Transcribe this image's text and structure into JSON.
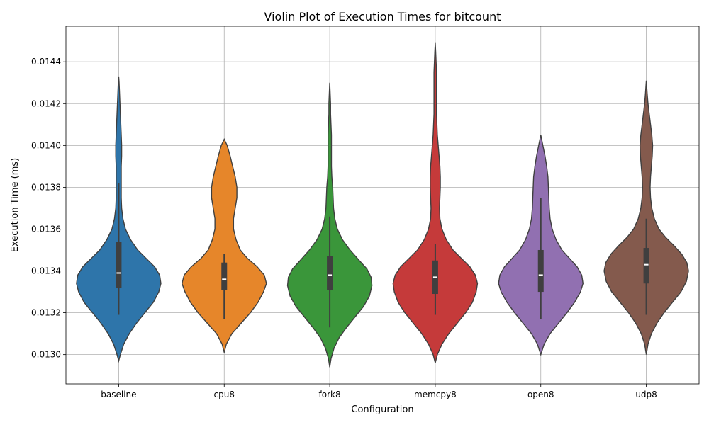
{
  "chart_data": {
    "type": "violin",
    "title": "Violin Plot of Execution Times for bitcount",
    "xlabel": "Configuration",
    "ylabel": "Execution Time (ms)",
    "ylim": [
      0.01286,
      0.01457
    ],
    "yticks": [
      "0.0130",
      "0.0132",
      "0.0134",
      "0.0136",
      "0.0138",
      "0.0140",
      "0.0142",
      "0.0144"
    ],
    "grid": true,
    "categories": [
      "baseline",
      "cpu8",
      "fork8",
      "memcpy8",
      "open8",
      "udp8"
    ],
    "colors": [
      "#2e75aa",
      "#e6862a",
      "#3a963a",
      "#c53a3a",
      "#9170b1",
      "#845a4d"
    ],
    "series": [
      {
        "name": "baseline",
        "min": 0.01297,
        "max": 0.01433,
        "q1": 0.01332,
        "median": 0.01339,
        "q3": 0.01354,
        "whisker_low": 0.01319,
        "whisker_high": 0.01382,
        "density": [
          [
            0.01297,
            0.0
          ],
          [
            0.013,
            0.04
          ],
          [
            0.01305,
            0.12
          ],
          [
            0.0131,
            0.25
          ],
          [
            0.01315,
            0.42
          ],
          [
            0.0132,
            0.62
          ],
          [
            0.01325,
            0.82
          ],
          [
            0.0133,
            0.95
          ],
          [
            0.01334,
            1.0
          ],
          [
            0.01338,
            0.97
          ],
          [
            0.01342,
            0.85
          ],
          [
            0.01346,
            0.65
          ],
          [
            0.0135,
            0.45
          ],
          [
            0.01355,
            0.28
          ],
          [
            0.0136,
            0.16
          ],
          [
            0.01365,
            0.1
          ],
          [
            0.0137,
            0.07
          ],
          [
            0.01375,
            0.06
          ],
          [
            0.0138,
            0.06
          ],
          [
            0.01385,
            0.06
          ],
          [
            0.0139,
            0.06
          ],
          [
            0.01395,
            0.07
          ],
          [
            0.014,
            0.07
          ],
          [
            0.01405,
            0.06
          ],
          [
            0.0141,
            0.05
          ],
          [
            0.01415,
            0.04
          ],
          [
            0.0142,
            0.03
          ],
          [
            0.01425,
            0.02
          ],
          [
            0.0143,
            0.01
          ],
          [
            0.01433,
            0.0
          ]
        ]
      },
      {
        "name": "cpu8",
        "min": 0.01301,
        "max": 0.01403,
        "q1": 0.01331,
        "median": 0.01336,
        "q3": 0.01344,
        "whisker_low": 0.01317,
        "whisker_high": 0.01348,
        "density": [
          [
            0.01301,
            0.0
          ],
          [
            0.01305,
            0.05
          ],
          [
            0.0131,
            0.18
          ],
          [
            0.01315,
            0.4
          ],
          [
            0.0132,
            0.62
          ],
          [
            0.01325,
            0.8
          ],
          [
            0.0133,
            0.93
          ],
          [
            0.01334,
            1.0
          ],
          [
            0.01338,
            0.95
          ],
          [
            0.01342,
            0.78
          ],
          [
            0.01346,
            0.55
          ],
          [
            0.0135,
            0.38
          ],
          [
            0.01355,
            0.28
          ],
          [
            0.0136,
            0.22
          ],
          [
            0.01365,
            0.22
          ],
          [
            0.0137,
            0.26
          ],
          [
            0.01375,
            0.3
          ],
          [
            0.0138,
            0.3
          ],
          [
            0.01385,
            0.26
          ],
          [
            0.0139,
            0.2
          ],
          [
            0.01395,
            0.14
          ],
          [
            0.014,
            0.07
          ],
          [
            0.01403,
            0.0
          ]
        ]
      },
      {
        "name": "fork8",
        "min": 0.01294,
        "max": 0.0143,
        "q1": 0.01331,
        "median": 0.01338,
        "q3": 0.01347,
        "whisker_low": 0.01313,
        "whisker_high": 0.01366,
        "density": [
          [
            0.01294,
            0.0
          ],
          [
            0.01298,
            0.03
          ],
          [
            0.01303,
            0.1
          ],
          [
            0.01308,
            0.22
          ],
          [
            0.01313,
            0.4
          ],
          [
            0.01318,
            0.6
          ],
          [
            0.01323,
            0.8
          ],
          [
            0.01328,
            0.94
          ],
          [
            0.01333,
            1.0
          ],
          [
            0.01337,
            0.98
          ],
          [
            0.01341,
            0.88
          ],
          [
            0.01345,
            0.7
          ],
          [
            0.0135,
            0.48
          ],
          [
            0.01355,
            0.3
          ],
          [
            0.0136,
            0.18
          ],
          [
            0.01365,
            0.12
          ],
          [
            0.0137,
            0.09
          ],
          [
            0.01375,
            0.08
          ],
          [
            0.0138,
            0.07
          ],
          [
            0.01385,
            0.05
          ],
          [
            0.0139,
            0.04
          ],
          [
            0.01395,
            0.04
          ],
          [
            0.014,
            0.04
          ],
          [
            0.01405,
            0.04
          ],
          [
            0.0141,
            0.03
          ],
          [
            0.01415,
            0.02
          ],
          [
            0.0142,
            0.02
          ],
          [
            0.01425,
            0.01
          ],
          [
            0.0143,
            0.0
          ]
        ]
      },
      {
        "name": "memcpy8",
        "min": 0.01296,
        "max": 0.01449,
        "q1": 0.01329,
        "median": 0.01337,
        "q3": 0.01345,
        "whisker_low": 0.01319,
        "whisker_high": 0.01353,
        "density": [
          [
            0.01296,
            0.0
          ],
          [
            0.013,
            0.05
          ],
          [
            0.01305,
            0.16
          ],
          [
            0.0131,
            0.32
          ],
          [
            0.01315,
            0.52
          ],
          [
            0.0132,
            0.72
          ],
          [
            0.01325,
            0.88
          ],
          [
            0.0133,
            0.97
          ],
          [
            0.01334,
            1.0
          ],
          [
            0.01338,
            0.95
          ],
          [
            0.01342,
            0.82
          ],
          [
            0.01346,
            0.62
          ],
          [
            0.0135,
            0.42
          ],
          [
            0.01355,
            0.26
          ],
          [
            0.0136,
            0.16
          ],
          [
            0.01365,
            0.11
          ],
          [
            0.0137,
            0.1
          ],
          [
            0.01375,
            0.11
          ],
          [
            0.0138,
            0.12
          ],
          [
            0.01385,
            0.12
          ],
          [
            0.0139,
            0.11
          ],
          [
            0.01395,
            0.09
          ],
          [
            0.014,
            0.07
          ],
          [
            0.01405,
            0.05
          ],
          [
            0.0141,
            0.04
          ],
          [
            0.01415,
            0.03
          ],
          [
            0.0142,
            0.03
          ],
          [
            0.01425,
            0.03
          ],
          [
            0.0143,
            0.03
          ],
          [
            0.01435,
            0.03
          ],
          [
            0.0144,
            0.02
          ],
          [
            0.01445,
            0.01
          ],
          [
            0.01449,
            0.0
          ]
        ]
      },
      {
        "name": "open8",
        "min": 0.013,
        "max": 0.01405,
        "q1": 0.0133,
        "median": 0.01338,
        "q3": 0.0135,
        "whisker_low": 0.01317,
        "whisker_high": 0.01375,
        "density": [
          [
            0.013,
            0.0
          ],
          [
            0.01305,
            0.08
          ],
          [
            0.0131,
            0.22
          ],
          [
            0.01315,
            0.42
          ],
          [
            0.0132,
            0.62
          ],
          [
            0.01325,
            0.8
          ],
          [
            0.0133,
            0.94
          ],
          [
            0.01334,
            1.0
          ],
          [
            0.01338,
            0.97
          ],
          [
            0.01342,
            0.86
          ],
          [
            0.01346,
            0.68
          ],
          [
            0.0135,
            0.5
          ],
          [
            0.01355,
            0.36
          ],
          [
            0.0136,
            0.27
          ],
          [
            0.01365,
            0.22
          ],
          [
            0.0137,
            0.2
          ],
          [
            0.01375,
            0.19
          ],
          [
            0.0138,
            0.18
          ],
          [
            0.01385,
            0.17
          ],
          [
            0.0139,
            0.14
          ],
          [
            0.01395,
            0.1
          ],
          [
            0.014,
            0.05
          ],
          [
            0.01405,
            0.0
          ]
        ]
      },
      {
        "name": "udp8",
        "min": 0.013,
        "max": 0.01431,
        "q1": 0.01334,
        "median": 0.01343,
        "q3": 0.01351,
        "whisker_low": 0.01319,
        "whisker_high": 0.01365,
        "density": [
          [
            0.013,
            0.0
          ],
          [
            0.01305,
            0.04
          ],
          [
            0.0131,
            0.12
          ],
          [
            0.01315,
            0.25
          ],
          [
            0.0132,
            0.42
          ],
          [
            0.01325,
            0.62
          ],
          [
            0.0133,
            0.82
          ],
          [
            0.01335,
            0.95
          ],
          [
            0.0134,
            1.0
          ],
          [
            0.01344,
            0.96
          ],
          [
            0.01348,
            0.84
          ],
          [
            0.01352,
            0.66
          ],
          [
            0.01356,
            0.46
          ],
          [
            0.0136,
            0.3
          ],
          [
            0.01365,
            0.19
          ],
          [
            0.0137,
            0.13
          ],
          [
            0.01375,
            0.1
          ],
          [
            0.0138,
            0.09
          ],
          [
            0.01385,
            0.1
          ],
          [
            0.0139,
            0.12
          ],
          [
            0.01395,
            0.14
          ],
          [
            0.014,
            0.15
          ],
          [
            0.01405,
            0.13
          ],
          [
            0.0141,
            0.1
          ],
          [
            0.01415,
            0.07
          ],
          [
            0.0142,
            0.04
          ],
          [
            0.01425,
            0.02
          ],
          [
            0.01431,
            0.0
          ]
        ]
      }
    ]
  }
}
